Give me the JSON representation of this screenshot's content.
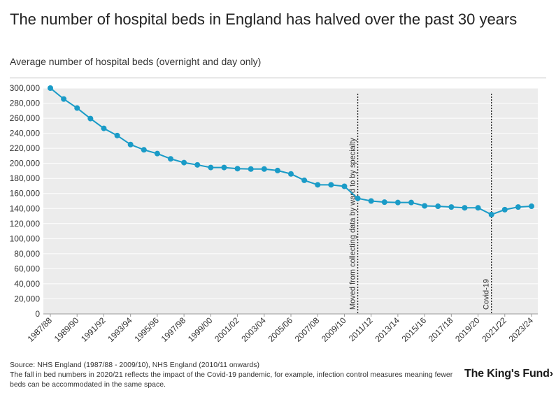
{
  "header": {
    "title": "The number of hospital beds in England has halved over the past 30 years",
    "subtitle": "Average number of hospital beds (overnight and day only)"
  },
  "footer": {
    "source_line": "Source: NHS England (1987/88 - 2009/10), NHS England (2010/11 onwards)",
    "note_line": "The fall in bed numbers in 2020/21 reflects the impact of the Covid-19 pandemic, for example, infection control measures meaning fewer beds can be accommodated in the same space.",
    "logo": "The King's Fund"
  },
  "colors": {
    "line": "#1a9bc7",
    "plot_bg": "#ececec",
    "grid": "#ffffff",
    "annotation": "#222222"
  },
  "chart_data": {
    "type": "line",
    "title": "The number of hospital beds in England has halved over the past 30 years",
    "subtitle": "Average number of hospital beds (overnight and day only)",
    "xlabel": "",
    "ylabel": "",
    "ylim": [
      0,
      300000
    ],
    "yticks": [
      0,
      20000,
      40000,
      60000,
      80000,
      100000,
      120000,
      140000,
      160000,
      180000,
      200000,
      220000,
      240000,
      260000,
      280000,
      300000
    ],
    "ytick_labels": [
      "0",
      "20,000",
      "40,000",
      "60,000",
      "80,000",
      "100,000",
      "120,000",
      "140,000",
      "160,000",
      "180,000",
      "200,000",
      "220,000",
      "240,000",
      "260,000",
      "280,000",
      "300,000"
    ],
    "grid": true,
    "categories": [
      "1987/88",
      "1988/89",
      "1989/90",
      "1990/91",
      "1991/92",
      "1992/93",
      "1993/94",
      "1994/95",
      "1995/96",
      "1996/97",
      "1997/98",
      "1998/99",
      "1999/00",
      "2000/01",
      "2001/02",
      "2002/03",
      "2003/04",
      "2004/05",
      "2005/06",
      "2006/07",
      "2007/08",
      "2008/09",
      "2009/10",
      "2010/11",
      "2011/12",
      "2012/13",
      "2013/14",
      "2014/15",
      "2015/16",
      "2016/17",
      "2017/18",
      "2018/19",
      "2019/20",
      "2020/21",
      "2021/22",
      "2022/23",
      "2023/24"
    ],
    "tick_labels": [
      "1987/88",
      "1989/90",
      "1991/92",
      "1993/94",
      "1995/96",
      "1997/98",
      "1999/00",
      "2001/02",
      "2003/04",
      "2005/06",
      "2007/08",
      "2009/10",
      "2011/12",
      "2013/14",
      "2015/16",
      "2017/18",
      "2019/20",
      "2021/22",
      "2023/24"
    ],
    "series": [
      {
        "name": "Average number of hospital beds",
        "values": [
          300000,
          285500,
          273500,
          259500,
          246500,
          237000,
          225000,
          218000,
          213000,
          206000,
          201000,
          198000,
          194500,
          194500,
          193000,
          192500,
          192500,
          190500,
          186000,
          177500,
          171500,
          171500,
          169500,
          153500,
          150000,
          148500,
          148000,
          148000,
          143500,
          143000,
          142000,
          141000,
          141000,
          132000,
          138500,
          142000,
          143000
        ]
      }
    ],
    "annotations": [
      {
        "at": "2010/11",
        "label": "Moved from collecting data by ward to by specialty"
      },
      {
        "at": "2020/21",
        "label": "Covid-19"
      }
    ]
  }
}
